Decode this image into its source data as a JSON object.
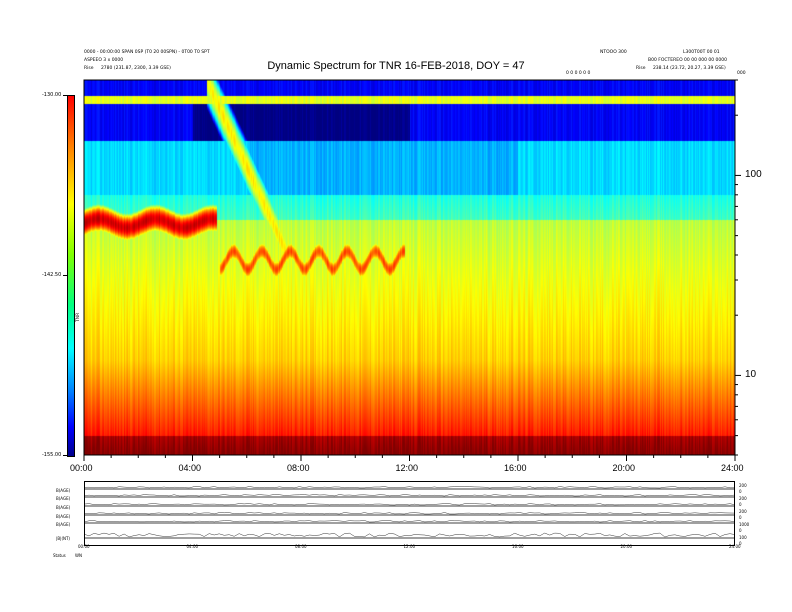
{
  "header": {
    "left_line1": "0000 - 00:00:00 SPAN 0SP (T0 20 00SPN) - 0T00 T0 SPT",
    "left_line2": "ASPEEO 3 x 0000",
    "left_line3_label": "Rise",
    "left_line3_value": "2780 (231.87, 2300, 3.39 GSE)",
    "right_line1": "NTOOO 300",
    "right_line2": "B00 FOCTEREO 00 00 000 00 0000",
    "right_line3_label": "Rise",
    "right_line3_value": "238.14 (23.72, 20.27, 3.39 GSE)",
    "far_right1": "L300T00T 00 01",
    "mid_tag": "0 0 0 0 0 0",
    "corner_tag": "000"
  },
  "chart_data": {
    "type": "heatmap",
    "title": "Dynamic Spectrum for TNR 16-FEB-2018, DOY = 47",
    "x_tick_labels": [
      "00:00",
      "04:00",
      "08:00",
      "12:00",
      "16:00",
      "20:00",
      "24:00"
    ],
    "x_range_hours": [
      0,
      24
    ],
    "y_scale": "log",
    "y_tick_labels": [
      "100",
      "10"
    ],
    "y_tick_values": [
      100,
      10
    ],
    "y_range": [
      4,
      300
    ],
    "colorbar": {
      "tick_labels": [
        "-130.00",
        "-142.50",
        "-155.00"
      ],
      "tick_values": [
        -130,
        -142.5,
        -155
      ],
      "range": [
        -155,
        -130
      ],
      "label": "TNR",
      "colormap": "jet"
    },
    "features": [
      {
        "name": "intense red band",
        "time_hours": [
          0.0,
          4.9
        ],
        "freq": 58,
        "level_db": -132
      },
      {
        "name": "drifting burst",
        "time_hours": [
          4.5,
          7.5
        ],
        "freq_start": 300,
        "freq_end": 40
      },
      {
        "name": "fragmented red band",
        "time_hours": [
          5.0,
          11.8
        ],
        "freq": 38,
        "level_db": -134
      },
      {
        "name": "low frequency red floor",
        "time_hours": [
          0,
          24
        ],
        "freq": 5,
        "level_db": -131
      }
    ]
  },
  "lower_panel": {
    "row_labels": [
      "B(AGE)",
      "B(AGE)",
      "B(AGE)",
      "B(AGE)",
      "B(AGE)",
      "|B|(NT)"
    ],
    "x_tick_labels": [
      "00:00",
      "04:00",
      "08:00",
      "12:00",
      "16:00",
      "20:00",
      "24:00"
    ],
    "right_labels": [
      "200",
      "0",
      "200",
      "0",
      "200",
      "0",
      "1000",
      "0",
      "100",
      "0"
    ],
    "footer_label": "Status",
    "footer_value": "WN"
  },
  "colors": {
    "background": "#ffffff",
    "axis": "#000000"
  }
}
